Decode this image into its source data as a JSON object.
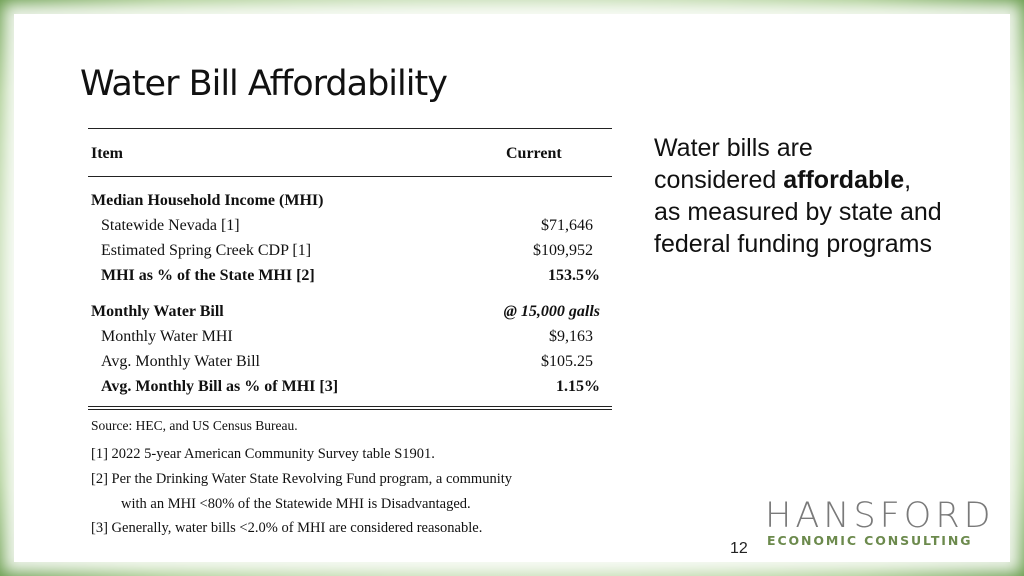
{
  "title": "Water Bill Affordability",
  "table": {
    "header": {
      "item": "Item",
      "current": "Current"
    },
    "mhi_section": {
      "heading": "Median Household Income (MHI)",
      "rows": [
        {
          "label": "Statewide Nevada  [1]",
          "value": "$71,646"
        },
        {
          "label": "Estimated Spring Creek CDP [1]",
          "value": "$109,952"
        },
        {
          "label": "MHI as % of the State MHI [2]",
          "value": "153.5%"
        }
      ]
    },
    "bill_section": {
      "heading": "Monthly Water Bill",
      "heading_value": "@ 15,000 galls",
      "rows": [
        {
          "label": "Monthly Water MHI",
          "value": "$9,163"
        },
        {
          "label": "Avg. Monthly Water Bill",
          "value": "$105.25"
        },
        {
          "label": "Avg. Monthly Bill as % of MHI [3]",
          "value": "1.15%"
        }
      ]
    }
  },
  "notes": {
    "source": "Source: HEC, and US Census Bureau.",
    "n1": "[1]  2022 5-year American Community Survey table S1901.",
    "n2a": "[2]  Per the Drinking Water State Revolving Fund program, a community",
    "n2b": "with an MHI <80% of the Statewide MHI is Disadvantaged.",
    "n3": "[3]  Generally, water bills <2.0% of MHI are considered reasonable."
  },
  "side_text": {
    "line1": "Water bills are",
    "line2_pre": "considered ",
    "line2_bold": "affordable",
    "line2_post": ",",
    "line3": "as measured by state and",
    "line4": "federal funding programs"
  },
  "logo": {
    "name": "HANSFORD",
    "sub": "ECONOMIC CONSULTING"
  },
  "page_number": "12",
  "colors": {
    "frame_green": "#5f9443",
    "logo_green": "#6c8a4d"
  }
}
